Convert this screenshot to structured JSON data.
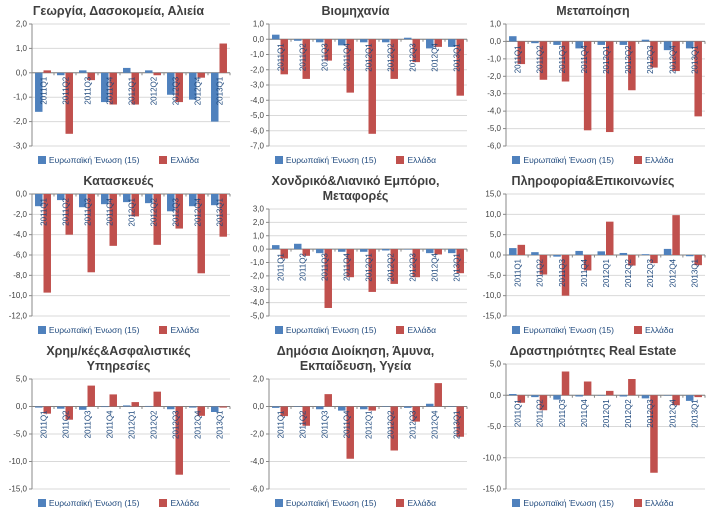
{
  "page": {
    "background": "#FFFFFF"
  },
  "colors": {
    "eu_series": "#4F81BD",
    "gr_series": "#C0504D",
    "gridline": "#D9D9D9",
    "axis": "#898989",
    "zero_line": "#808080",
    "category_label": "#1F497D",
    "tick_label": "#404040",
    "title": "#3F3F3F",
    "legend_text": "#1F497D"
  },
  "legend": {
    "eu_label": "Ευρωπαϊκή Ένωση (15)",
    "gr_label": "Ελλάδα"
  },
  "categories": [
    "2011Q1",
    "2011Q2",
    "2011Q3",
    "2011Q4",
    "2012Q1",
    "2012Q2",
    "2012Q3",
    "2012Q4",
    "2013Q1"
  ],
  "chart_data": [
    {
      "type": "bar",
      "title": "Γεωργία, Δασοκομεία, Αλιεία",
      "xlabel": "",
      "ylabel": "",
      "ylim": [
        -3.0,
        2.0
      ],
      "ytick_step": 1.0,
      "grid": true,
      "legend_position": "bottom",
      "categories": [
        "2011Q1",
        "2011Q2",
        "2011Q3",
        "2011Q4",
        "2012Q1",
        "2012Q2",
        "2012Q3",
        "2012Q4",
        "2013Q1"
      ],
      "series": [
        {
          "name": "Ευρωπαϊκή Ένωση (15)",
          "values": [
            -1.6,
            -0.1,
            0.1,
            -1.2,
            0.2,
            0.1,
            -0.9,
            -1.1,
            -2.0
          ]
        },
        {
          "name": "Ελλάδα",
          "values": [
            0.1,
            -2.5,
            -0.3,
            -1.3,
            -1.3,
            -0.1,
            -1.2,
            -0.2,
            1.2
          ]
        }
      ]
    },
    {
      "type": "bar",
      "title": "Βιομηχανία",
      "xlabel": "",
      "ylabel": "",
      "ylim": [
        -7.0,
        1.0
      ],
      "ytick_step": 1.0,
      "grid": true,
      "legend_position": "bottom",
      "categories": [
        "2011Q1",
        "2011Q2",
        "2011Q3",
        "2011Q4",
        "2012Q1",
        "2012Q2",
        "2012Q3",
        "2012Q4",
        "2013Q1"
      ],
      "series": [
        {
          "name": "Ευρωπαϊκή Ένωση (15)",
          "values": [
            0.3,
            -0.1,
            -0.2,
            -0.4,
            -0.2,
            -0.2,
            0.1,
            -0.6,
            -0.5
          ]
        },
        {
          "name": "Ελλάδα",
          "values": [
            -2.3,
            -2.6,
            -1.4,
            -3.5,
            -6.2,
            -2.6,
            -1.5,
            -0.5,
            -3.7
          ]
        }
      ]
    },
    {
      "type": "bar",
      "title": "Μεταποίηση",
      "xlabel": "",
      "ylabel": "",
      "ylim": [
        -6.0,
        1.0
      ],
      "ytick_step": 1.0,
      "grid": true,
      "legend_position": "bottom",
      "categories": [
        "2011Q1",
        "2011Q2",
        "2011Q3",
        "2011Q4",
        "2012Q1",
        "2012Q2",
        "2012Q3",
        "2012Q4",
        "2013Q1"
      ],
      "series": [
        {
          "name": "Ευρωπαϊκή Ένωση (15)",
          "values": [
            0.3,
            -0.1,
            -0.2,
            -0.4,
            -0.2,
            -0.2,
            0.1,
            -0.5,
            -0.4
          ]
        },
        {
          "name": "Ελλάδα",
          "values": [
            -1.3,
            -2.2,
            -2.3,
            -5.1,
            -5.2,
            -2.8,
            -1.5,
            -1.7,
            -4.3
          ]
        }
      ]
    },
    {
      "type": "bar",
      "title": "Κατασκευές",
      "xlabel": "",
      "ylabel": "",
      "ylim": [
        -12.0,
        0.0
      ],
      "ytick_step": 2.0,
      "grid": true,
      "legend_position": "bottom",
      "categories": [
        "2011Q1",
        "2011Q2",
        "2011Q3",
        "2011Q4",
        "2012Q1",
        "2012Q2",
        "2012Q3",
        "2012Q4",
        "2013Q1"
      ],
      "series": [
        {
          "name": "Ευρωπαϊκή Ένωση (15)",
          "values": [
            -1.2,
            -0.6,
            -1.3,
            -1.0,
            -0.8,
            -0.9,
            -1.7,
            -1.2,
            -1.1
          ]
        },
        {
          "name": "Ελλάδα",
          "values": [
            -9.7,
            -4.0,
            -7.7,
            -5.1,
            -2.2,
            -5.0,
            -3.4,
            -7.8,
            -4.2
          ]
        }
      ]
    },
    {
      "type": "bar",
      "title": "Χονδρικό&Λιανικό Εμπόριο, Μεταφορές",
      "xlabel": "",
      "ylabel": "",
      "ylim": [
        -5.0,
        3.0
      ],
      "ytick_step": 1.0,
      "grid": true,
      "legend_position": "bottom",
      "categories": [
        "2011Q1",
        "2011Q2",
        "2011Q3",
        "2011Q4",
        "2012Q1",
        "2012Q2",
        "2012Q3",
        "2012Q4",
        "2013Q1"
      ],
      "series": [
        {
          "name": "Ευρωπαϊκή Ένωση (15)",
          "values": [
            0.3,
            0.4,
            -0.3,
            -0.2,
            -0.2,
            -0.1,
            0.0,
            -0.3,
            -0.3
          ]
        },
        {
          "name": "Ελλάδα",
          "values": [
            -0.7,
            -0.5,
            -4.4,
            -2.1,
            -3.2,
            -2.6,
            -2.1,
            -0.4,
            -1.8
          ]
        }
      ]
    },
    {
      "type": "bar",
      "title": "Πληροφορία&Επικοινωνίες",
      "xlabel": "",
      "ylabel": "",
      "ylim": [
        -15.0,
        15.0
      ],
      "ytick_step": 5.0,
      "grid": true,
      "legend_position": "bottom",
      "categories": [
        "2011Q1",
        "2011Q2",
        "2011Q3",
        "2011Q4",
        "2012Q1",
        "2012Q2",
        "2012Q3",
        "2012Q4",
        "2013Q1"
      ],
      "series": [
        {
          "name": "Ευρωπαϊκή Ένωση (15)",
          "values": [
            1.7,
            0.7,
            -0.4,
            1.0,
            0.9,
            0.5,
            0.2,
            1.5,
            -0.3
          ]
        },
        {
          "name": "Ελλάδα",
          "values": [
            2.5,
            -4.8,
            -10.0,
            -3.8,
            8.2,
            -2.6,
            -2.0,
            9.8,
            -2.5
          ]
        }
      ]
    },
    {
      "type": "bar",
      "title": "Χρημ/κές&Ασφαλιστικές Υπηρεσίες",
      "xlabel": "",
      "ylabel": "",
      "ylim": [
        -15.0,
        5.0
      ],
      "ytick_step": 5.0,
      "grid": true,
      "legend_position": "bottom",
      "categories": [
        "2011Q1",
        "2011Q2",
        "2011Q3",
        "2011Q4",
        "2012Q1",
        "2012Q2",
        "2012Q3",
        "2012Q4",
        "2013Q1"
      ],
      "series": [
        {
          "name": "Ευρωπαϊκή Ένωση (15)",
          "values": [
            -0.2,
            -0.4,
            -0.6,
            -0.1,
            0.2,
            0.1,
            -0.5,
            -0.2,
            -1.0
          ]
        },
        {
          "name": "Ελλάδα",
          "values": [
            -1.3,
            -2.4,
            3.8,
            2.2,
            0.8,
            2.7,
            -12.4,
            -1.7,
            -0.2
          ]
        }
      ]
    },
    {
      "type": "bar",
      "title": "Δημόσια Διοίκηση, Άμυνα, Εκπαίδευση, Υγεία",
      "xlabel": "",
      "ylabel": "",
      "ylim": [
        -6.0,
        2.0
      ],
      "ytick_step": 2.0,
      "grid": true,
      "legend_position": "bottom",
      "categories": [
        "2011Q1",
        "2011Q2",
        "2011Q3",
        "2011Q4",
        "2012Q1",
        "2012Q2",
        "2012Q3",
        "2012Q4",
        "2013Q1"
      ],
      "series": [
        {
          "name": "Ευρωπαϊκή Ένωση (15)",
          "values": [
            -0.1,
            0.0,
            -0.2,
            -0.3,
            -0.2,
            0.0,
            -0.1,
            0.2,
            0.0
          ]
        },
        {
          "name": "Ελλάδα",
          "values": [
            -0.7,
            -1.4,
            0.9,
            -3.8,
            -0.3,
            -3.2,
            -1.1,
            1.7,
            -2.2
          ]
        }
      ]
    },
    {
      "type": "bar",
      "title": "Δραστηριότητες Real Estate",
      "xlabel": "",
      "ylabel": "",
      "ylim": [
        -15.0,
        5.0
      ],
      "ytick_step": 5.0,
      "grid": true,
      "legend_position": "bottom",
      "categories": [
        "2011Q1",
        "2011Q2",
        "2011Q3",
        "2011Q4",
        "2012Q1",
        "2012Q2",
        "2012Q3",
        "2012Q4",
        "2013Q1"
      ],
      "series": [
        {
          "name": "Ευρωπαϊκή Ένωση (15)",
          "values": [
            0.2,
            -0.3,
            -0.7,
            -0.2,
            0.0,
            -0.2,
            -0.5,
            0.0,
            -0.9
          ]
        },
        {
          "name": "Ελλάδα",
          "values": [
            -1.2,
            -2.4,
            3.8,
            2.2,
            0.7,
            2.6,
            -12.4,
            -1.6,
            -0.3
          ]
        }
      ]
    }
  ]
}
